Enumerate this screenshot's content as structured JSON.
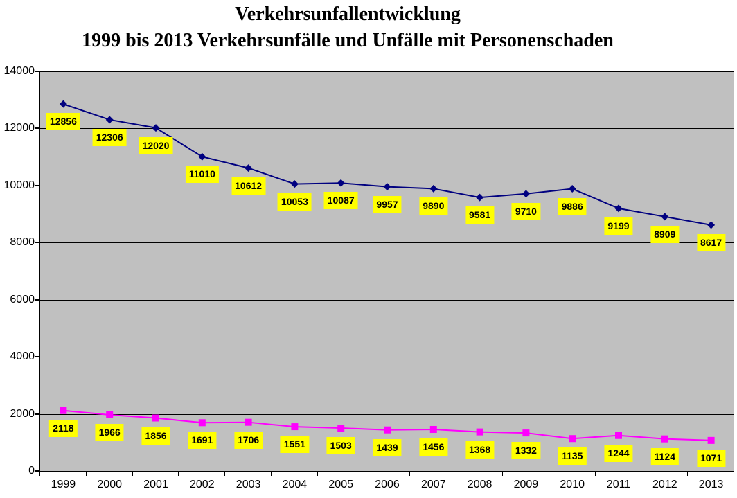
{
  "chart_data": {
    "type": "line",
    "title": "Verkehrsunfallentwicklung",
    "subtitle": "1999 bis 2013 Verkehrsunfälle und Unfälle mit Personenschaden",
    "categories": [
      "1999",
      "2000",
      "2001",
      "2002",
      "2003",
      "2004",
      "2005",
      "2006",
      "2007",
      "2008",
      "2009",
      "2010",
      "2011",
      "2012",
      "2013"
    ],
    "series": [
      {
        "name": "Verkehrsunfälle",
        "marker": "diamond",
        "color": "#000080",
        "values": [
          12856,
          12306,
          12020,
          11010,
          10612,
          10053,
          10087,
          9957,
          9890,
          9581,
          9710,
          9886,
          9199,
          8909,
          8617
        ]
      },
      {
        "name": "Unfälle mit Personenschaden",
        "marker": "square",
        "color": "#ff00ff",
        "values": [
          2118,
          1966,
          1856,
          1691,
          1706,
          1551,
          1503,
          1439,
          1456,
          1368,
          1332,
          1135,
          1244,
          1124,
          1071
        ]
      }
    ],
    "xlabel": "",
    "ylabel": "",
    "ylim": [
      0,
      14000
    ],
    "yticks": [
      14000,
      12000,
      10000,
      8000,
      6000,
      4000,
      2000,
      0
    ],
    "grid": true,
    "legend": "none",
    "data_labels": true,
    "colors": {
      "plot_background": "#c0c0c0",
      "gridline": "#000000",
      "axis": "#000000",
      "data_label_background": "#ffff00",
      "data_label_text": "#000000",
      "title_text": "#000000"
    }
  }
}
